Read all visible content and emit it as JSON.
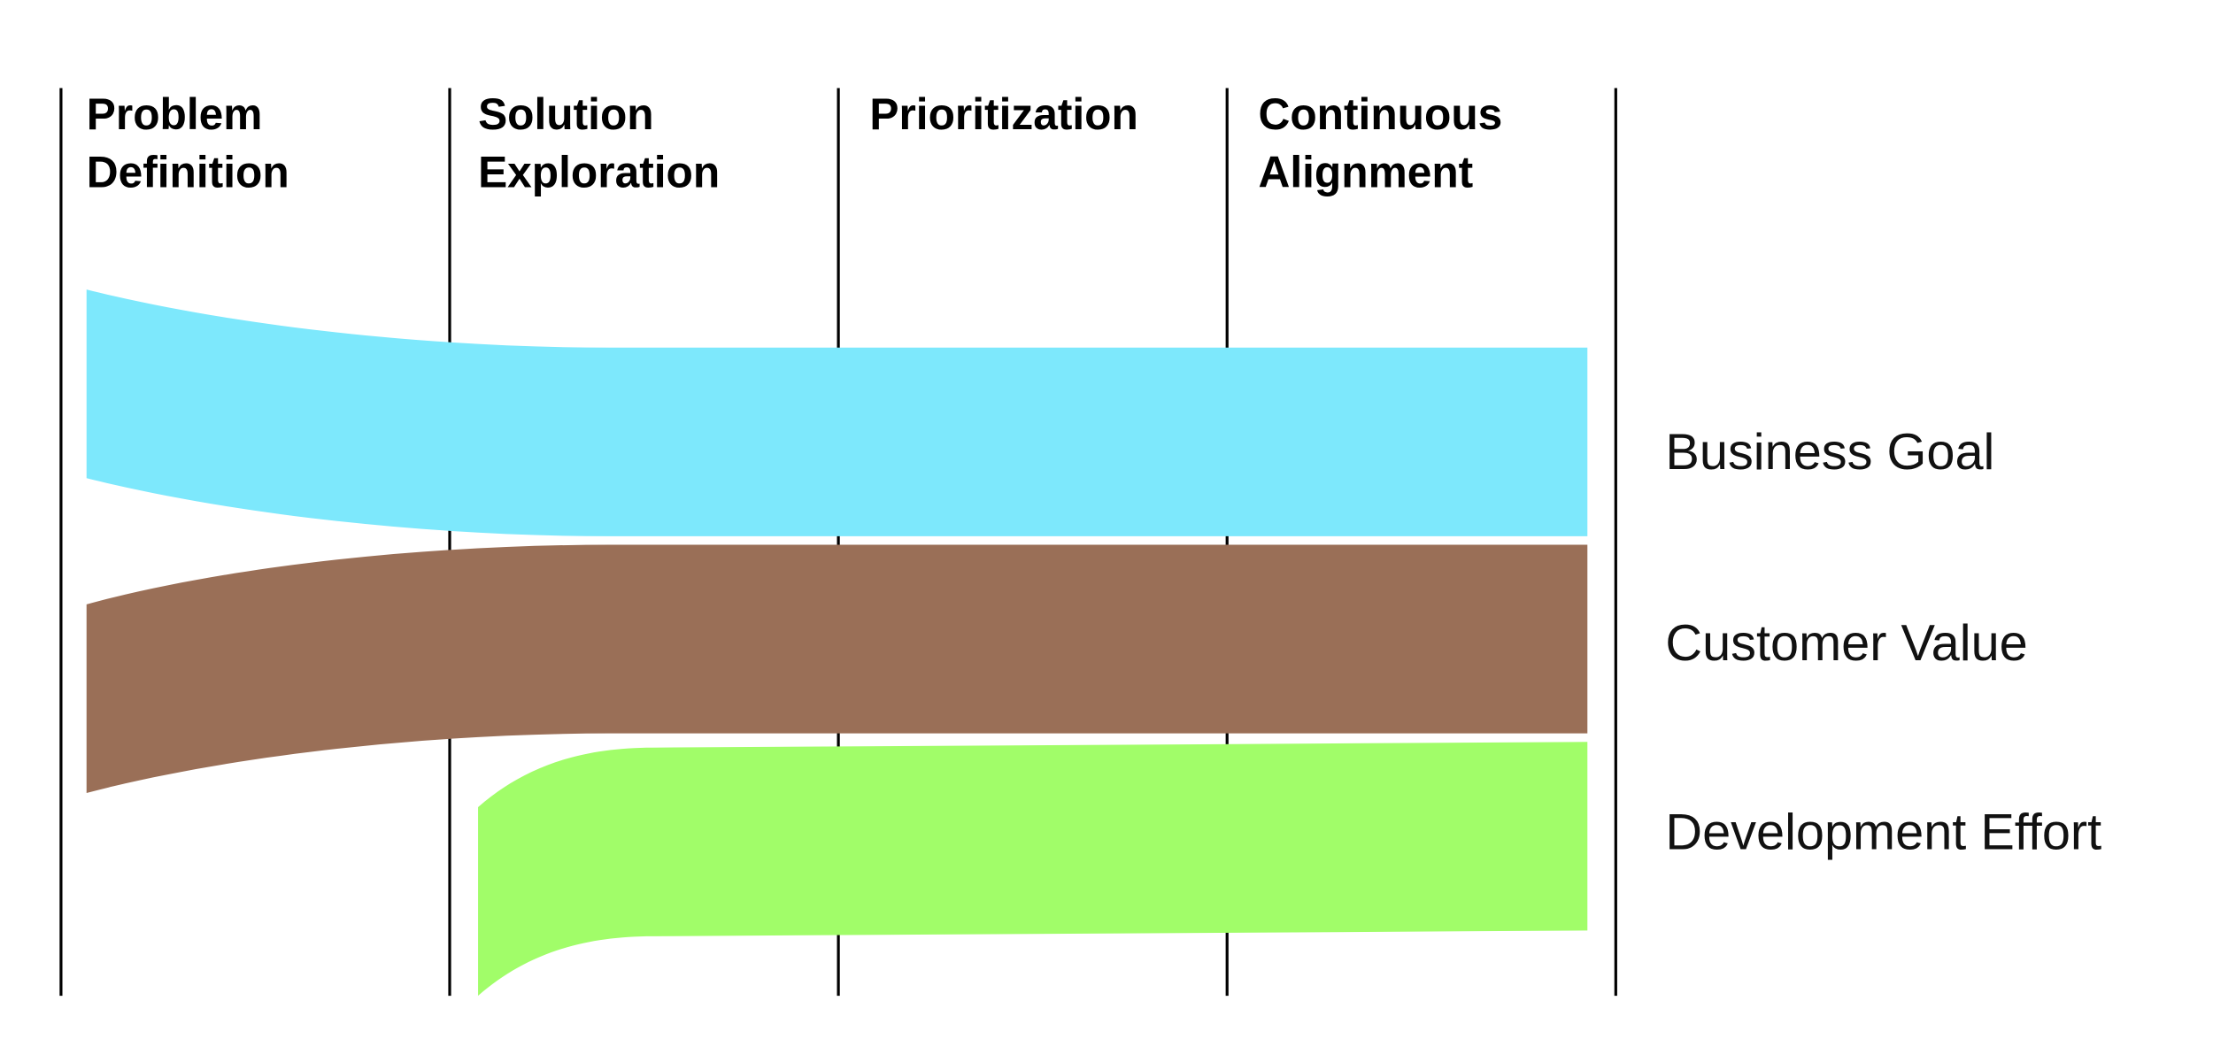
{
  "stages": [
    [
      "Problem",
      "Definition"
    ],
    [
      "Solution",
      "Exploration"
    ],
    [
      "Prioritization"
    ],
    [
      "Continuous",
      "Alignment"
    ]
  ],
  "bands": [
    {
      "label": "Business Goal",
      "color": "#7de8fc"
    },
    {
      "label": "Customer Value",
      "color": "#9a6f57"
    },
    {
      "label": "Development Effort",
      "color": "#a1fd69"
    }
  ]
}
